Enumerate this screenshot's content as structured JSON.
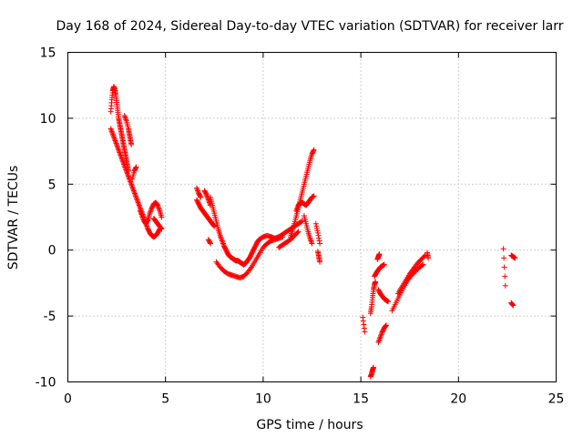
{
  "chart_data": {
    "type": "scatter",
    "title": "Day 168 of 2024, Sidereal Day-to-day VTEC variation (SDTVAR) for receiver larr",
    "xlabel": "GPS time / hours",
    "ylabel": "SDTVAR / TECUs",
    "xlim": [
      0,
      25
    ],
    "ylim": [
      -10,
      15
    ],
    "xticks": [
      0,
      5,
      10,
      15,
      20,
      25
    ],
    "yticks": [
      -10,
      -5,
      0,
      5,
      10,
      15
    ],
    "xtick_labels": [
      "0",
      "5",
      "10",
      "15",
      "20",
      "25"
    ],
    "ytick_labels": [
      "-10",
      "-5",
      "0",
      "5",
      "10",
      "15"
    ],
    "grid": true,
    "marker": "plus",
    "color": "#ff0000",
    "series": [
      {
        "segments": [
          {
            "x": [
              2.2,
              2.3,
              2.4,
              2.5,
              2.6,
              2.7,
              2.8,
              2.9,
              3.0,
              3.1,
              3.2,
              3.3,
              3.4,
              3.5,
              3.6,
              3.7,
              3.8,
              3.9,
              4.0,
              4.1,
              4.2,
              4.3,
              4.4,
              4.5,
              4.6,
              4.7
            ],
            "y": [
              9.2,
              8.8,
              8.4,
              8.0,
              7.6,
              7.2,
              6.8,
              6.4,
              6.0,
              5.6,
              5.2,
              4.8,
              4.4,
              4.0,
              3.6,
              3.2,
              2.8,
              2.4,
              2.0,
              1.6,
              1.3,
              1.1,
              1.0,
              1.1,
              1.3,
              1.6
            ]
          },
          {
            "x": [
              2.2,
              2.25,
              2.3,
              2.35,
              2.4,
              2.45,
              2.5,
              2.55,
              2.6,
              2.65,
              2.7,
              2.75,
              2.8,
              2.85,
              2.9,
              2.95,
              3.0,
              3.05,
              3.1
            ],
            "y": [
              10.5,
              11.4,
              12.1,
              12.4,
              12.2,
              11.8,
              11.2,
              10.6,
              10.0,
              9.6,
              9.2,
              8.8,
              8.4,
              8.0,
              7.6,
              7.2,
              6.8,
              6.4,
              6.0
            ]
          },
          {
            "x": [
              2.9,
              3.0,
              3.1,
              3.15,
              3.2,
              3.25
            ],
            "y": [
              10.2,
              9.8,
              9.2,
              8.8,
              8.4,
              8.0
            ]
          },
          {
            "x": [
              3.3,
              3.4,
              3.5
            ],
            "y": [
              5.4,
              6.0,
              6.3
            ]
          },
          {
            "x": [
              3.7,
              3.8,
              3.9,
              4.0,
              4.1,
              4.2,
              4.3,
              4.4,
              4.5,
              4.6,
              4.7,
              4.8
            ],
            "y": [
              3.0,
              2.6,
              2.2,
              2.0,
              2.3,
              2.8,
              3.2,
              3.5,
              3.6,
              3.4,
              3.0,
              2.5
            ]
          },
          {
            "x": [
              4.4,
              4.5,
              4.6,
              4.7,
              4.8
            ],
            "y": [
              2.4,
              2.2,
              2.0,
              1.8,
              1.6
            ]
          },
          {
            "x": [
              6.6,
              6.7,
              6.8,
              6.9,
              7.0,
              7.1,
              7.2,
              7.3,
              7.4,
              7.5
            ],
            "y": [
              3.8,
              3.5,
              3.2,
              3.0,
              2.8,
              2.6,
              2.4,
              2.2,
              2.0,
              1.8
            ]
          },
          {
            "x": [
              6.6,
              6.7,
              6.8
            ],
            "y": [
              4.7,
              4.3,
              4.0
            ]
          },
          {
            "x": [
              7.0,
              7.1,
              7.2,
              7.3
            ],
            "y": [
              4.5,
              4.2,
              3.8,
              3.4
            ]
          },
          {
            "x": [
              7.3,
              7.4,
              7.5,
              7.6,
              7.7,
              7.8,
              7.9,
              8.0,
              8.1,
              8.2,
              8.3,
              8.4,
              8.5,
              8.6,
              8.7,
              8.8,
              8.9,
              9.0,
              9.1,
              9.2,
              9.3,
              9.4,
              9.5,
              9.6,
              9.7,
              9.8
            ],
            "y": [
              4.0,
              3.4,
              2.8,
              2.2,
              1.6,
              1.1,
              0.7,
              0.3,
              0.0,
              -0.3,
              -0.5,
              -0.6,
              -0.7,
              -0.8,
              -0.8,
              -0.9,
              -1.0,
              -1.1,
              -1.0,
              -0.8,
              -0.6,
              -0.3,
              0.0,
              0.3,
              0.6,
              0.8
            ]
          },
          {
            "x": [
              7.2,
              7.3
            ],
            "y": [
              0.8,
              0.5
            ]
          },
          {
            "x": [
              7.6,
              7.8,
              8.0,
              8.2,
              8.4,
              8.6,
              8.8,
              9.0,
              9.2,
              9.4,
              9.6,
              9.8,
              10.0,
              10.2,
              10.4,
              10.6,
              10.8,
              11.0
            ],
            "y": [
              -0.9,
              -1.3,
              -1.6,
              -1.8,
              -1.9,
              -2.0,
              -2.1,
              -2.0,
              -1.7,
              -1.3,
              -0.8,
              -0.3,
              0.2,
              0.5,
              0.7,
              0.8,
              0.9,
              1.0
            ]
          },
          {
            "x": [
              9.8,
              10.0,
              10.2,
              10.4,
              10.6,
              10.8,
              11.0,
              11.2,
              11.4,
              11.6,
              11.8,
              12.0
            ],
            "y": [
              0.8,
              1.0,
              1.1,
              1.0,
              0.9,
              1.0,
              1.2,
              1.4,
              1.6,
              1.8,
              2.0,
              2.2
            ]
          },
          {
            "x": [
              10.8,
              11.0,
              11.2,
              11.4,
              11.6,
              11.8
            ],
            "y": [
              0.2,
              0.4,
              0.6,
              0.8,
              1.1,
              1.4
            ]
          },
          {
            "x": [
              11.4,
              11.5,
              11.6,
              11.7,
              11.8,
              11.9,
              12.0,
              12.1,
              12.2,
              12.3,
              12.4,
              12.5,
              12.6
            ],
            "y": [
              1.0,
              1.5,
              2.0,
              2.6,
              3.2,
              3.8,
              4.4,
              5.0,
              5.6,
              6.2,
              6.8,
              7.3,
              7.6
            ]
          },
          {
            "x": [
              11.7,
              11.8,
              11.9,
              12.0,
              12.1,
              12.2,
              12.3,
              12.4,
              12.5,
              12.6
            ],
            "y": [
              3.0,
              3.4,
              3.6,
              3.6,
              3.5,
              3.4,
              3.6,
              3.8,
              4.0,
              4.1
            ]
          },
          {
            "x": [
              12.1,
              12.2,
              12.3,
              12.4,
              12.5
            ],
            "y": [
              2.6,
              2.0,
              1.4,
              0.9,
              0.5
            ]
          },
          {
            "x": [
              12.7,
              12.8,
              12.9
            ],
            "y": [
              2.0,
              1.3,
              0.5
            ]
          },
          {
            "x": [
              12.8,
              12.85,
              12.9
            ],
            "y": [
              -0.1,
              -0.5,
              -0.9
            ]
          },
          {
            "x": [
              15.1,
              15.2
            ],
            "y": [
              -5.1,
              -6.2
            ]
          },
          {
            "x": [
              15.5,
              15.55,
              15.6,
              15.65
            ],
            "y": [
              -9.6,
              -9.4,
              -9.1,
              -8.9
            ]
          },
          {
            "x": [
              15.5,
              15.55,
              15.6,
              15.65,
              15.7,
              15.75
            ],
            "y": [
              -4.8,
              -4.3,
              -3.6,
              -3.0,
              -2.6,
              -2.4
            ]
          },
          {
            "x": [
              15.7,
              15.8,
              15.9,
              16.0,
              16.1,
              16.2
            ],
            "y": [
              -2.0,
              -1.7,
              -1.5,
              -1.3,
              -1.2,
              -1.1
            ]
          },
          {
            "x": [
              15.85,
              15.9,
              15.95
            ],
            "y": [
              -0.7,
              -0.5,
              -0.3
            ]
          },
          {
            "x": [
              15.9,
              16.0,
              16.1,
              16.2,
              16.3
            ],
            "y": [
              -7.0,
              -6.6,
              -6.2,
              -5.9,
              -5.7
            ]
          },
          {
            "x": [
              15.9,
              16.0,
              16.1,
              16.2,
              16.3,
              16.4
            ],
            "y": [
              -3.0,
              -3.3,
              -3.5,
              -3.7,
              -3.8,
              -3.9
            ]
          },
          {
            "x": [
              16.6,
              16.8,
              17.0,
              17.2,
              17.4,
              17.6,
              17.8,
              18.0,
              18.2
            ],
            "y": [
              -4.6,
              -4.0,
              -3.4,
              -2.8,
              -2.3,
              -1.9,
              -1.6,
              -1.3,
              -1.1
            ]
          },
          {
            "x": [
              16.9,
              17.1,
              17.3,
              17.5,
              17.7,
              17.9,
              18.1,
              18.3
            ],
            "y": [
              -3.3,
              -2.8,
              -2.3,
              -1.8,
              -1.4,
              -1.0,
              -0.7,
              -0.4
            ]
          },
          {
            "x": [
              18.4,
              18.45
            ],
            "y": [
              -0.2,
              -0.6
            ]
          },
          {
            "x": [
              22.3,
              22.4
            ],
            "y": [
              0.1,
              -2.7
            ]
          },
          {
            "x": [
              22.7,
              22.8,
              22.9
            ],
            "y": [
              -0.4,
              -0.5,
              -0.6
            ]
          },
          {
            "x": [
              22.7,
              22.8
            ],
            "y": [
              -4.0,
              -4.2
            ]
          }
        ]
      }
    ]
  }
}
